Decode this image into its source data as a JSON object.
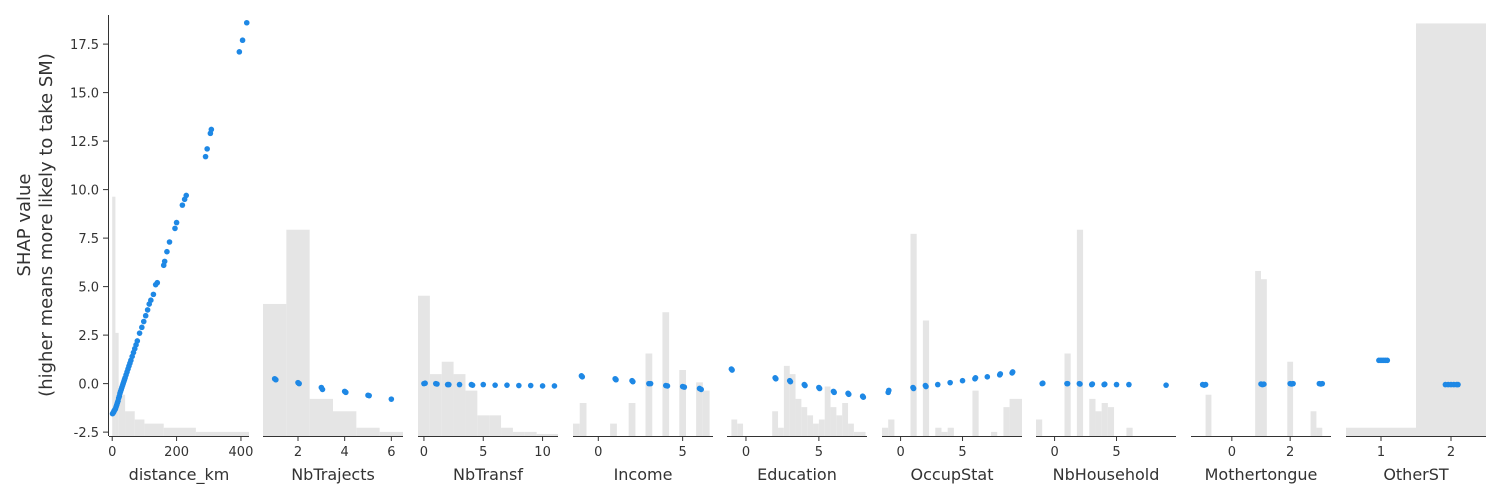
{
  "y_axis": {
    "label_line1": "SHAP value",
    "label_line2": "(higher means more likely to take SM)",
    "ticks": [
      "17.5",
      "15.0",
      "12.5",
      "10.0",
      "7.5",
      "5.0",
      "2.5",
      "0.0",
      "-2.5"
    ]
  },
  "colors": {
    "points": "#1e88e5",
    "hist": "#e5e5e5",
    "axis": "#333333",
    "text": "#333333"
  },
  "chart_data": [
    {
      "type": "scatter",
      "xlabel": "distance_km",
      "xlim": [
        -10,
        425
      ],
      "ylim": [
        -2.7,
        19.0
      ],
      "xticks": [
        0,
        200,
        400
      ],
      "xtick_labels": [
        "0",
        "200",
        "400"
      ],
      "hist": [
        {
          "x0": 0,
          "x1": 10,
          "h": 0.58
        },
        {
          "x0": 10,
          "x1": 20,
          "h": 0.25
        },
        {
          "x0": 20,
          "x1": 40,
          "h": 0.1
        },
        {
          "x0": 40,
          "x1": 70,
          "h": 0.06
        },
        {
          "x0": 70,
          "x1": 100,
          "h": 0.04
        },
        {
          "x0": 100,
          "x1": 160,
          "h": 0.03
        },
        {
          "x0": 160,
          "x1": 260,
          "h": 0.02
        },
        {
          "x0": 260,
          "x1": 425,
          "h": 0.01
        }
      ],
      "points": [
        [
          1,
          -1.55
        ],
        [
          3,
          -1.5
        ],
        [
          5,
          -1.45
        ],
        [
          6,
          -1.4
        ],
        [
          8,
          -1.35
        ],
        [
          10,
          -1.3
        ],
        [
          12,
          -1.2
        ],
        [
          14,
          -1.1
        ],
        [
          16,
          -1.0
        ],
        [
          18,
          -0.9
        ],
        [
          20,
          -0.75
        ],
        [
          22,
          -0.65
        ],
        [
          24,
          -0.5
        ],
        [
          26,
          -0.4
        ],
        [
          28,
          -0.3
        ],
        [
          30,
          -0.2
        ],
        [
          32,
          -0.1
        ],
        [
          34,
          0.0
        ],
        [
          36,
          0.1
        ],
        [
          38,
          0.2
        ],
        [
          40,
          0.3
        ],
        [
          43,
          0.45
        ],
        [
          46,
          0.6
        ],
        [
          49,
          0.75
        ],
        [
          52,
          0.9
        ],
        [
          55,
          1.05
        ],
        [
          58,
          1.2
        ],
        [
          62,
          1.4
        ],
        [
          66,
          1.6
        ],
        [
          70,
          1.8
        ],
        [
          74,
          2.0
        ],
        [
          78,
          2.2
        ],
        [
          85,
          2.6
        ],
        [
          92,
          2.9
        ],
        [
          98,
          3.2
        ],
        [
          104,
          3.5
        ],
        [
          110,
          3.8
        ],
        [
          115,
          4.1
        ],
        [
          120,
          4.3
        ],
        [
          128,
          4.6
        ],
        [
          135,
          5.1
        ],
        [
          140,
          5.2
        ],
        [
          160,
          6.1
        ],
        [
          163,
          6.3
        ],
        [
          170,
          6.8
        ],
        [
          178,
          7.3
        ],
        [
          195,
          8.0
        ],
        [
          200,
          8.3
        ],
        [
          218,
          9.2
        ],
        [
          225,
          9.5
        ],
        [
          230,
          9.7
        ],
        [
          290,
          11.7
        ],
        [
          295,
          12.1
        ],
        [
          305,
          12.9
        ],
        [
          308,
          13.1
        ],
        [
          395,
          17.1
        ],
        [
          405,
          17.7
        ],
        [
          418,
          18.6
        ]
      ]
    },
    {
      "type": "scatter",
      "xlabel": "NbTrajects",
      "xlim": [
        0.5,
        6.5
      ],
      "ylim": [
        -2.7,
        19.0
      ],
      "xticks": [
        2,
        4,
        6
      ],
      "xtick_labels": [
        "2",
        "4",
        "6"
      ],
      "hist": [
        {
          "x0": 0.5,
          "x1": 1.5,
          "h": 0.32
        },
        {
          "x0": 1.5,
          "x1": 2.5,
          "h": 0.5
        },
        {
          "x0": 2.5,
          "x1": 3.5,
          "h": 0.09
        },
        {
          "x0": 3.5,
          "x1": 4.5,
          "h": 0.06
        },
        {
          "x0": 4.5,
          "x1": 5.5,
          "h": 0.02
        },
        {
          "x0": 5.5,
          "x1": 6.5,
          "h": 0.01
        }
      ],
      "points": [
        [
          1,
          0.25
        ],
        [
          1.05,
          0.2
        ],
        [
          2,
          0.05
        ],
        [
          2.05,
          0.0
        ],
        [
          3,
          -0.2
        ],
        [
          3.05,
          -0.3
        ],
        [
          4,
          -0.4
        ],
        [
          4.05,
          -0.45
        ],
        [
          5,
          -0.6
        ],
        [
          5.05,
          -0.62
        ],
        [
          6,
          -0.8
        ]
      ]
    },
    {
      "type": "scatter",
      "xlabel": "NbTransf",
      "xlim": [
        -0.5,
        11.3
      ],
      "ylim": [
        -2.7,
        19.0
      ],
      "xticks": [
        0,
        5,
        10
      ],
      "xtick_labels": [
        "0",
        "5",
        "10"
      ],
      "hist": [
        {
          "x0": -0.5,
          "x1": 0.5,
          "h": 0.34
        },
        {
          "x0": 0.5,
          "x1": 1.5,
          "h": 0.15
        },
        {
          "x0": 1.5,
          "x1": 2.5,
          "h": 0.18
        },
        {
          "x0": 2.5,
          "x1": 3.5,
          "h": 0.15
        },
        {
          "x0": 3.5,
          "x1": 4.5,
          "h": 0.11
        },
        {
          "x0": 4.5,
          "x1": 5.5,
          "h": 0.05
        },
        {
          "x0": 5.5,
          "x1": 6.5,
          "h": 0.05
        },
        {
          "x0": 6.5,
          "x1": 7.5,
          "h": 0.02
        },
        {
          "x0": 7.5,
          "x1": 8.5,
          "h": 0.01
        },
        {
          "x0": 8.5,
          "x1": 9.5,
          "h": 0.01
        },
        {
          "x0": 9.5,
          "x1": 11.3,
          "h": 0.005
        }
      ],
      "points": [
        [
          0,
          0.0
        ],
        [
          0.1,
          0.02
        ],
        [
          1,
          0.0
        ],
        [
          1.1,
          -0.02
        ],
        [
          2,
          -0.05
        ],
        [
          2.1,
          -0.05
        ],
        [
          3,
          -0.05
        ],
        [
          4,
          -0.05
        ],
        [
          4.1,
          -0.08
        ],
        [
          5,
          -0.05
        ],
        [
          6,
          -0.08
        ],
        [
          7,
          -0.08
        ],
        [
          8,
          -0.1
        ],
        [
          9,
          -0.1
        ],
        [
          10,
          -0.12
        ],
        [
          11,
          -0.12
        ]
      ]
    },
    {
      "type": "scatter",
      "xlabel": "Income",
      "xlim": [
        -1.5,
        6.8
      ],
      "ylim": [
        -2.7,
        19.0
      ],
      "xticks": [
        0,
        5
      ],
      "xtick_labels": [
        "0",
        "5"
      ],
      "hist": [
        {
          "x0": -1.5,
          "x1": -1.1,
          "h": 0.03
        },
        {
          "x0": -1.1,
          "x1": -0.7,
          "h": 0.08
        },
        {
          "x0": 0.7,
          "x1": 1.1,
          "h": 0.03
        },
        {
          "x0": 1.8,
          "x1": 2.2,
          "h": 0.08
        },
        {
          "x0": 2.8,
          "x1": 3.2,
          "h": 0.2
        },
        {
          "x0": 3.8,
          "x1": 4.2,
          "h": 0.3
        },
        {
          "x0": 4.8,
          "x1": 5.2,
          "h": 0.16
        },
        {
          "x0": 5.8,
          "x1": 6.2,
          "h": 0.13
        },
        {
          "x0": 6.2,
          "x1": 6.6,
          "h": 0.11
        }
      ],
      "points": [
        [
          -1,
          0.4
        ],
        [
          -0.95,
          0.35
        ],
        [
          1,
          0.25
        ],
        [
          1.05,
          0.2
        ],
        [
          2,
          0.15
        ],
        [
          2.05,
          0.1
        ],
        [
          3,
          0.0
        ],
        [
          3.1,
          0.0
        ],
        [
          4,
          -0.1
        ],
        [
          4.1,
          -0.12
        ],
        [
          5,
          -0.15
        ],
        [
          5.1,
          -0.18
        ],
        [
          6,
          -0.25
        ],
        [
          6.1,
          -0.3
        ]
      ]
    },
    {
      "type": "scatter",
      "xlabel": "Education",
      "xlim": [
        -1.3,
        8.3
      ],
      "ylim": [
        -2.7,
        19.0
      ],
      "xticks": [
        0,
        5
      ],
      "xtick_labels": [
        "0",
        "5"
      ],
      "hist": [
        {
          "x0": -1.0,
          "x1": -0.6,
          "h": 0.04
        },
        {
          "x0": -0.6,
          "x1": -0.2,
          "h": 0.03
        },
        {
          "x0": 1.8,
          "x1": 2.2,
          "h": 0.06
        },
        {
          "x0": 2.2,
          "x1": 2.6,
          "h": 0.02
        },
        {
          "x0": 2.6,
          "x1": 3.0,
          "h": 0.17
        },
        {
          "x0": 3.0,
          "x1": 3.4,
          "h": 0.15
        },
        {
          "x0": 3.4,
          "x1": 3.8,
          "h": 0.09
        },
        {
          "x0": 3.8,
          "x1": 4.2,
          "h": 0.07
        },
        {
          "x0": 4.2,
          "x1": 4.6,
          "h": 0.05
        },
        {
          "x0": 4.6,
          "x1": 5.0,
          "h": 0.03
        },
        {
          "x0": 5.0,
          "x1": 5.4,
          "h": 0.04
        },
        {
          "x0": 5.4,
          "x1": 5.8,
          "h": 0.12
        },
        {
          "x0": 5.8,
          "x1": 6.2,
          "h": 0.07
        },
        {
          "x0": 6.2,
          "x1": 6.6,
          "h": 0.05
        },
        {
          "x0": 6.6,
          "x1": 7.0,
          "h": 0.08
        },
        {
          "x0": 7.0,
          "x1": 7.4,
          "h": 0.03
        },
        {
          "x0": 7.4,
          "x1": 8.2,
          "h": 0.01
        }
      ],
      "points": [
        [
          -1,
          0.75
        ],
        [
          -0.95,
          0.7
        ],
        [
          2,
          0.3
        ],
        [
          2.05,
          0.25
        ],
        [
          3,
          0.15
        ],
        [
          3.05,
          0.1
        ],
        [
          4,
          -0.05
        ],
        [
          4.05,
          -0.1
        ],
        [
          5,
          -0.2
        ],
        [
          5.05,
          -0.25
        ],
        [
          6,
          -0.4
        ],
        [
          6.05,
          -0.45
        ],
        [
          7,
          -0.5
        ],
        [
          7.05,
          -0.55
        ],
        [
          8,
          -0.65
        ],
        [
          8.05,
          -0.7
        ]
      ]
    },
    {
      "type": "scatter",
      "xlabel": "OccupStat",
      "xlim": [
        -1.5,
        9.8
      ],
      "ylim": [
        -2.7,
        19.0
      ],
      "xticks": [
        0,
        5
      ],
      "xtick_labels": [
        "0",
        "5"
      ],
      "hist": [
        {
          "x0": -1.5,
          "x1": -1.0,
          "h": 0.02
        },
        {
          "x0": -1.0,
          "x1": -0.5,
          "h": 0.04
        },
        {
          "x0": 0.8,
          "x1": 1.3,
          "h": 0.49
        },
        {
          "x0": 1.8,
          "x1": 2.3,
          "h": 0.28
        },
        {
          "x0": 2.8,
          "x1": 3.3,
          "h": 0.02
        },
        {
          "x0": 3.3,
          "x1": 3.8,
          "h": 0.01
        },
        {
          "x0": 3.8,
          "x1": 4.3,
          "h": 0.02
        },
        {
          "x0": 5.8,
          "x1": 6.3,
          "h": 0.11
        },
        {
          "x0": 7.3,
          "x1": 7.8,
          "h": 0.01
        },
        {
          "x0": 8.3,
          "x1": 8.8,
          "h": 0.07
        },
        {
          "x0": 8.8,
          "x1": 9.8,
          "h": 0.09
        }
      ],
      "points": [
        [
          -1,
          -0.45
        ],
        [
          -0.95,
          -0.35
        ],
        [
          1,
          -0.2
        ],
        [
          1.05,
          -0.25
        ],
        [
          2,
          -0.1
        ],
        [
          2.05,
          -0.15
        ],
        [
          3,
          -0.05
        ],
        [
          4,
          0.05
        ],
        [
          5,
          0.15
        ],
        [
          6,
          0.25
        ],
        [
          6.05,
          0.3
        ],
        [
          7,
          0.35
        ],
        [
          8,
          0.45
        ],
        [
          8.05,
          0.5
        ],
        [
          9,
          0.55
        ],
        [
          9.05,
          0.6
        ]
      ]
    },
    {
      "type": "scatter",
      "xlabel": "NbHousehold",
      "xlim": [
        -1.5,
        9.8
      ],
      "ylim": [
        -2.7,
        19.0
      ],
      "xticks": [
        0,
        5
      ],
      "xtick_labels": [
        "0",
        "5"
      ],
      "hist": [
        {
          "x0": -1.5,
          "x1": -1.0,
          "h": 0.04
        },
        {
          "x0": 0.8,
          "x1": 1.3,
          "h": 0.2
        },
        {
          "x0": 1.8,
          "x1": 2.3,
          "h": 0.5
        },
        {
          "x0": 2.8,
          "x1": 3.3,
          "h": 0.09
        },
        {
          "x0": 3.3,
          "x1": 3.8,
          "h": 0.06
        },
        {
          "x0": 3.8,
          "x1": 4.3,
          "h": 0.08
        },
        {
          "x0": 4.3,
          "x1": 4.8,
          "h": 0.07
        },
        {
          "x0": 5.8,
          "x1": 6.3,
          "h": 0.02
        }
      ],
      "points": [
        [
          -1,
          0.0
        ],
        [
          -0.95,
          0.02
        ],
        [
          1,
          0.0
        ],
        [
          1.05,
          0.0
        ],
        [
          2,
          0.0
        ],
        [
          2.05,
          -0.02
        ],
        [
          3,
          -0.05
        ],
        [
          3.05,
          -0.02
        ],
        [
          4,
          -0.05
        ],
        [
          4.05,
          -0.03
        ],
        [
          5,
          -0.05
        ],
        [
          6,
          -0.05
        ],
        [
          9,
          -0.08
        ]
      ]
    },
    {
      "type": "scatter",
      "xlabel": "Mothertongue",
      "xlim": [
        -1.4,
        3.4
      ],
      "ylim": [
        -2.7,
        19.0
      ],
      "xticks": [
        0,
        2
      ],
      "xtick_labels": [
        "0",
        "2"
      ],
      "hist": [
        {
          "x0": -0.9,
          "x1": -0.7,
          "h": 0.1
        },
        {
          "x0": 0.8,
          "x1": 1.0,
          "h": 0.4
        },
        {
          "x0": 1.0,
          "x1": 1.2,
          "h": 0.38
        },
        {
          "x0": 1.9,
          "x1": 2.1,
          "h": 0.18
        },
        {
          "x0": 2.7,
          "x1": 2.9,
          "h": 0.06
        },
        {
          "x0": 2.9,
          "x1": 3.1,
          "h": 0.02
        }
      ],
      "points": [
        [
          -1,
          -0.05
        ],
        [
          -0.95,
          -0.08
        ],
        [
          -0.9,
          -0.05
        ],
        [
          1,
          -0.02
        ],
        [
          1.05,
          -0.05
        ],
        [
          1.1,
          -0.03
        ],
        [
          2,
          0.0
        ],
        [
          2.05,
          -0.02
        ],
        [
          2.1,
          0.0
        ],
        [
          3,
          0.0
        ],
        [
          3.05,
          -0.02
        ],
        [
          3.1,
          0.0
        ]
      ]
    },
    {
      "type": "scatter",
      "xlabel": "OtherST",
      "xlim": [
        0.5,
        2.5
      ],
      "ylim": [
        -2.7,
        19.0
      ],
      "xticks": [
        1,
        2
      ],
      "xtick_labels": [
        "1",
        "2"
      ],
      "hist": [
        {
          "x0": 0.5,
          "x1": 1.5,
          "h": 0.02
        },
        {
          "x0": 1.5,
          "x1": 2.5,
          "h": 1.0
        }
      ],
      "points": [
        [
          0.97,
          1.2
        ],
        [
          1.0,
          1.2
        ],
        [
          1.03,
          1.2
        ],
        [
          1.06,
          1.2
        ],
        [
          1.09,
          1.2
        ],
        [
          1.92,
          -0.05
        ],
        [
          1.96,
          -0.05
        ],
        [
          2.0,
          -0.05
        ],
        [
          2.04,
          -0.05
        ],
        [
          2.08,
          -0.05
        ],
        [
          2.1,
          -0.05
        ]
      ]
    }
  ]
}
